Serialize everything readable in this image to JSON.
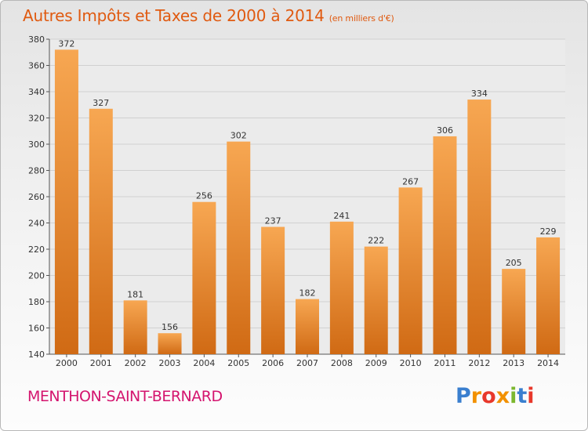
{
  "title": "Autres Impôts et Taxes de 2000 à 2014",
  "title_unit": "(en milliers d'€)",
  "commune": "MENTHON-SAINT-BERNARD",
  "logo": "Proxiti",
  "colors": {
    "title": "#e05a10",
    "commune": "#d4146e",
    "bar_light": "#f7a752",
    "bar_dark": "#d06a14"
  },
  "chart_data": {
    "type": "bar",
    "title": "Autres Impôts et Taxes de 2000 à 2014",
    "categories": [
      "2000",
      "2001",
      "2002",
      "2003",
      "2004",
      "2005",
      "2006",
      "2007",
      "2008",
      "2009",
      "2010",
      "2011",
      "2012",
      "2013",
      "2014"
    ],
    "values": [
      372,
      327,
      181,
      156,
      256,
      302,
      237,
      182,
      241,
      222,
      267,
      306,
      334,
      205,
      229
    ],
    "ylim": [
      140,
      380
    ],
    "yticks": [
      140,
      160,
      180,
      200,
      220,
      240,
      260,
      280,
      300,
      320,
      340,
      360,
      380
    ],
    "grid": true,
    "legend": "none"
  }
}
